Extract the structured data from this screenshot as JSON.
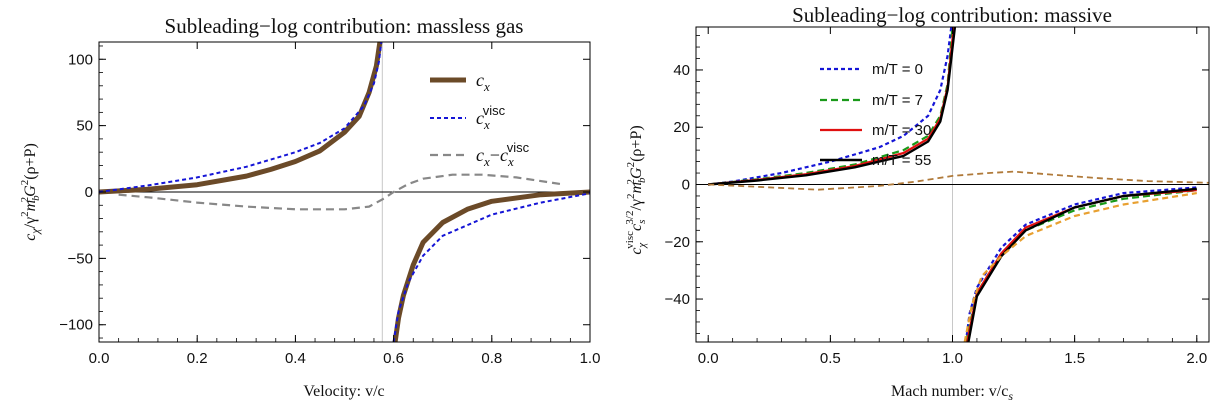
{
  "chart_data": [
    {
      "type": "line",
      "title": "Subleading−log contribution: massless gas",
      "xlabel": "Velocity: v/c",
      "ylabel_parts": [
        "c",
        "χ",
        "/γ",
        "2",
        "m",
        "b",
        "2",
        "G",
        "2",
        "(ρ+P)"
      ],
      "xlim": [
        0,
        1
      ],
      "ylim": [
        -113,
        113
      ],
      "xticks": [
        0,
        0.2,
        0.4,
        0.6,
        0.8,
        1.0
      ],
      "xtick_labels": [
        "0.0",
        "0.2",
        "0.4",
        "0.6",
        "0.8",
        "1.0"
      ],
      "yticks": [
        -100,
        -50,
        0,
        50,
        100
      ],
      "ytick_labels": [
        "−100",
        "−50",
        "0",
        "50",
        "100"
      ],
      "vline": 0.577,
      "grid": false,
      "legend_position": "top-right",
      "series": [
        {
          "name": "c",
          "name_sub": "x",
          "name_sup": "",
          "color": "#6b4a28",
          "dash": "",
          "width": 5,
          "segments": [
            [
              [
                0,
                0
              ],
              [
                0.1,
                2
              ],
              [
                0.2,
                5.5
              ],
              [
                0.3,
                12
              ],
              [
                0.35,
                17
              ],
              [
                0.4,
                23
              ],
              [
                0.45,
                31
              ],
              [
                0.5,
                45
              ],
              [
                0.53,
                57
              ],
              [
                0.55,
                75
              ],
              [
                0.565,
                95
              ],
              [
                0.572,
                113
              ]
            ],
            [
              [
                0.603,
                -113
              ],
              [
                0.61,
                -95
              ],
              [
                0.62,
                -78
              ],
              [
                0.64,
                -55
              ],
              [
                0.66,
                -38
              ],
              [
                0.7,
                -23
              ],
              [
                0.75,
                -13
              ],
              [
                0.8,
                -7
              ],
              [
                0.9,
                -2
              ],
              [
                1.0,
                0
              ]
            ]
          ]
        },
        {
          "name": "c",
          "name_sub": "x",
          "name_sup": "visc",
          "color": "#1515d6",
          "dash": "4,3",
          "width": 2,
          "segments": [
            [
              [
                0,
                0
              ],
              [
                0.1,
                5
              ],
              [
                0.2,
                11
              ],
              [
                0.3,
                19
              ],
              [
                0.4,
                30
              ],
              [
                0.45,
                37
              ],
              [
                0.5,
                48
              ],
              [
                0.54,
                65
              ],
              [
                0.56,
                82
              ],
              [
                0.57,
                98
              ],
              [
                0.575,
                113
              ]
            ],
            [
              [
                0.6,
                -113
              ],
              [
                0.61,
                -90
              ],
              [
                0.63,
                -68
              ],
              [
                0.66,
                -48
              ],
              [
                0.7,
                -33
              ],
              [
                0.8,
                -17
              ],
              [
                0.9,
                -8
              ],
              [
                1.0,
                -1
              ]
            ]
          ]
        },
        {
          "name": "c",
          "name_sub": "x",
          "name_sup": "visc",
          "name_prefix": "c",
          "name_prefix_sub": "x",
          "color": "#888888",
          "dash": "8,5",
          "width": 2.2,
          "segments": [
            [
              [
                0.04,
                -2
              ],
              [
                0.1,
                -4
              ],
              [
                0.2,
                -8
              ],
              [
                0.3,
                -11
              ],
              [
                0.4,
                -13
              ],
              [
                0.5,
                -13
              ],
              [
                0.55,
                -11
              ],
              [
                0.58,
                -5
              ],
              [
                0.6,
                0
              ],
              [
                0.63,
                6
              ],
              [
                0.66,
                10
              ],
              [
                0.72,
                13
              ],
              [
                0.78,
                13
              ],
              [
                0.85,
                11
              ],
              [
                0.94,
                6
              ]
            ]
          ]
        }
      ]
    },
    {
      "type": "line",
      "title": "Subleading−log contribution: massive",
      "xlabel": "Mach number: v/c",
      "xlabel_sub": "s",
      "ylabel_parts": [
        "c",
        "χ",
        "visc",
        "c",
        "s",
        "3/2",
        "/γ",
        "2",
        "m",
        "b",
        "2",
        "G",
        "2",
        "(ρ+P)"
      ],
      "xlim": [
        -0.05,
        2.05
      ],
      "ylim": [
        -55,
        55
      ],
      "xticks": [
        0,
        0.5,
        1.0,
        1.5,
        2.0
      ],
      "xtick_labels": [
        "0.0",
        "0.5",
        "1.0",
        "1.5",
        "2.0"
      ],
      "yticks": [
        -40,
        -20,
        0,
        20,
        40
      ],
      "ytick_labels": [
        "−40",
        "−20",
        "0",
        "20",
        "40"
      ],
      "vline": 1.0,
      "grid": false,
      "legend_position": "top-center",
      "series": [
        {
          "name": "m/T = 0",
          "color": "#1515d6",
          "dash": "4,3",
          "width": 2.2,
          "segments": [
            [
              [
                0,
                0
              ],
              [
                0.1,
                1
              ],
              [
                0.3,
                4
              ],
              [
                0.5,
                8
              ],
              [
                0.7,
                13
              ],
              [
                0.8,
                17
              ],
              [
                0.9,
                24
              ],
              [
                0.95,
                33
              ],
              [
                0.98,
                45
              ],
              [
                0.995,
                55
              ]
            ],
            [
              [
                1.055,
                -55
              ],
              [
                1.07,
                -45
              ],
              [
                1.1,
                -36
              ],
              [
                1.2,
                -22
              ],
              [
                1.3,
                -14
              ],
              [
                1.5,
                -7
              ],
              [
                1.7,
                -3
              ],
              [
                2.0,
                -1
              ]
            ]
          ]
        },
        {
          "name": "m/T = 7",
          "color": "#1a9a1a",
          "dash": "7,4",
          "width": 2.2,
          "segments": [
            [
              [
                0,
                0
              ],
              [
                0.2,
                1.8
              ],
              [
                0.4,
                4
              ],
              [
                0.6,
                7
              ],
              [
                0.8,
                12
              ],
              [
                0.9,
                17
              ],
              [
                0.95,
                24
              ],
              [
                0.98,
                35
              ],
              [
                1.0,
                55
              ]
            ],
            [
              [
                1.055,
                -55
              ],
              [
                1.1,
                -38
              ],
              [
                1.2,
                -24
              ],
              [
                1.3,
                -16
              ],
              [
                1.5,
                -9
              ],
              [
                1.7,
                -5
              ],
              [
                2.0,
                -2
              ]
            ]
          ]
        },
        {
          "name": "m/T = 30",
          "color": "#e01010",
          "dash": "",
          "width": 2.2,
          "segments": [
            [
              [
                0,
                0
              ],
              [
                0.2,
                1.6
              ],
              [
                0.4,
                3.6
              ],
              [
                0.6,
                6.5
              ],
              [
                0.8,
                11
              ],
              [
                0.9,
                16
              ],
              [
                0.95,
                23
              ],
              [
                0.98,
                34
              ],
              [
                1.005,
                55
              ]
            ],
            [
              [
                1.06,
                -55
              ],
              [
                1.1,
                -38
              ],
              [
                1.2,
                -24
              ],
              [
                1.3,
                -15
              ],
              [
                1.5,
                -8
              ],
              [
                1.7,
                -4
              ],
              [
                2.0,
                -2
              ]
            ]
          ]
        },
        {
          "name": "m/T = 55",
          "color": "#000000",
          "dash": "",
          "width": 2.4,
          "segments": [
            [
              [
                0,
                0
              ],
              [
                0.2,
                1.4
              ],
              [
                0.4,
                3.2
              ],
              [
                0.6,
                6
              ],
              [
                0.8,
                10
              ],
              [
                0.9,
                15
              ],
              [
                0.95,
                22
              ],
              [
                0.98,
                33
              ],
              [
                1.01,
                55
              ]
            ],
            [
              [
                1.065,
                -55
              ],
              [
                1.1,
                -39
              ],
              [
                1.2,
                -25
              ],
              [
                1.3,
                -16
              ],
              [
                1.5,
                -8
              ],
              [
                1.7,
                -4
              ],
              [
                2.0,
                -1.5
              ]
            ]
          ]
        },
        {
          "name": "",
          "color": "#b07a3a",
          "dash": "6,4",
          "width": 1.8,
          "segments": [
            [
              [
                0,
                0
              ],
              [
                0.2,
                -0.8
              ],
              [
                0.45,
                -1.8
              ],
              [
                0.7,
                -0.5
              ],
              [
                0.85,
                1
              ],
              [
                1.0,
                3
              ],
              [
                1.15,
                4
              ],
              [
                1.25,
                4.5
              ],
              [
                1.4,
                3.5
              ],
              [
                1.6,
                2.2
              ],
              [
                1.8,
                1.2
              ],
              [
                2.05,
                0.6
              ]
            ]
          ]
        },
        {
          "name": "",
          "color": "#e8a030",
          "dash": "6,4",
          "width": 2.2,
          "segments": [
            [
              [
                1.05,
                -55
              ],
              [
                1.08,
                -42
              ],
              [
                1.12,
                -32
              ],
              [
                1.2,
                -25
              ],
              [
                1.3,
                -18
              ],
              [
                1.5,
                -11
              ],
              [
                1.7,
                -7
              ],
              [
                2.0,
                -3
              ]
            ]
          ]
        }
      ]
    }
  ]
}
